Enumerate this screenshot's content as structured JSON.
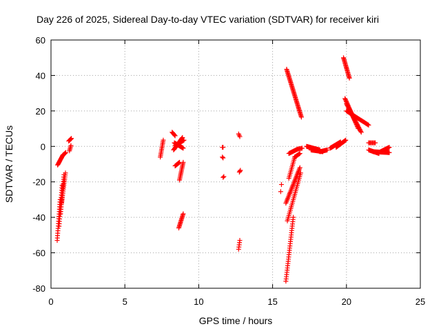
{
  "chart_data": {
    "type": "scatter",
    "title": "Day 226 of 2025, Sidereal Day-to-day VTEC variation (SDTVAR) for receiver kiri",
    "xlabel": "GPS time / hours",
    "ylabel": "SDTVAR / TECUs",
    "xlim": [
      0,
      25
    ],
    "ylim": [
      -80,
      60
    ],
    "xticks": [
      "0",
      "5",
      "10",
      "15",
      "20",
      "25"
    ],
    "yticks": [
      "-80",
      "-60",
      "-40",
      "-20",
      "0",
      "20",
      "40",
      "60"
    ],
    "grid": true,
    "marker": "plus",
    "color": "#ff0000",
    "segments": [
      {
        "x0": 0.45,
        "y0": -10.5,
        "x1": 0.8,
        "y1": -5.0,
        "n": 14
      },
      {
        "x0": 0.8,
        "y0": -5.0,
        "x1": 1.0,
        "y1": -3.5,
        "n": 6
      },
      {
        "x0": 0.42,
        "y0": -53.0,
        "x1": 0.62,
        "y1": -30.0,
        "n": 18
      },
      {
        "x0": 0.55,
        "y0": -45.0,
        "x1": 0.75,
        "y1": -22.0,
        "n": 18
      },
      {
        "x0": 0.65,
        "y0": -38.0,
        "x1": 0.88,
        "y1": -16.0,
        "n": 18
      },
      {
        "x0": 0.72,
        "y0": -32.0,
        "x1": 0.98,
        "y1": -15.0,
        "n": 16
      },
      {
        "x0": 1.2,
        "y0": 3.0,
        "x1": 1.38,
        "y1": 4.5,
        "n": 6
      },
      {
        "x0": 1.25,
        "y0": -2.5,
        "x1": 1.35,
        "y1": 0.5,
        "n": 5
      },
      {
        "x0": 7.4,
        "y0": -6.0,
        "x1": 7.6,
        "y1": 3.5,
        "n": 12
      },
      {
        "x0": 8.2,
        "y0": 8.0,
        "x1": 8.4,
        "y1": 6.0,
        "n": 6
      },
      {
        "x0": 8.3,
        "y0": -2.0,
        "x1": 8.9,
        "y1": 5.0,
        "n": 20
      },
      {
        "x0": 8.35,
        "y0": 2.0,
        "x1": 8.95,
        "y1": -1.0,
        "n": 18
      },
      {
        "x0": 8.4,
        "y0": 0.5,
        "x1": 9.0,
        "y1": 3.5,
        "n": 14
      },
      {
        "x0": 8.4,
        "y0": -11.0,
        "x1": 8.7,
        "y1": -9.0,
        "n": 8
      },
      {
        "x0": 8.7,
        "y0": -19.0,
        "x1": 8.95,
        "y1": -9.0,
        "n": 14
      },
      {
        "x0": 8.65,
        "y0": -46.0,
        "x1": 8.95,
        "y1": -38.0,
        "n": 14
      },
      {
        "x0": 11.6,
        "y0": -0.5,
        "x1": 11.65,
        "y1": -0.5,
        "n": 2
      },
      {
        "x0": 11.6,
        "y0": -6.0,
        "x1": 11.65,
        "y1": -6.5,
        "n": 2
      },
      {
        "x0": 11.65,
        "y0": -17.5,
        "x1": 11.7,
        "y1": -17.0,
        "n": 2
      },
      {
        "x0": 12.7,
        "y0": 7.0,
        "x1": 12.78,
        "y1": 5.5,
        "n": 3
      },
      {
        "x0": 12.75,
        "y0": -14.5,
        "x1": 12.82,
        "y1": -13.5,
        "n": 3
      },
      {
        "x0": 12.7,
        "y0": -58.0,
        "x1": 12.78,
        "y1": -53.0,
        "n": 5
      },
      {
        "x0": 15.6,
        "y0": -21.5,
        "x1": 15.6,
        "y1": -21.5,
        "n": 1
      },
      {
        "x0": 15.55,
        "y0": -25.5,
        "x1": 15.55,
        "y1": -25.5,
        "n": 1
      },
      {
        "x0": 15.95,
        "y0": 43.5,
        "x1": 16.95,
        "y1": 16.5,
        "n": 45
      },
      {
        "x0": 15.9,
        "y0": -76.0,
        "x1": 16.4,
        "y1": -40.0,
        "n": 30
      },
      {
        "x0": 15.9,
        "y0": -32.0,
        "x1": 16.85,
        "y1": -12.0,
        "n": 30
      },
      {
        "x0": 16.0,
        "y0": -42.0,
        "x1": 16.9,
        "y1": -15.0,
        "n": 28
      },
      {
        "x0": 16.1,
        "y0": -18.0,
        "x1": 16.5,
        "y1": -6.0,
        "n": 14
      },
      {
        "x0": 16.5,
        "y0": -6.0,
        "x1": 16.85,
        "y1": -4.0,
        "n": 8
      },
      {
        "x0": 16.1,
        "y0": -4.0,
        "x1": 16.7,
        "y1": -1.5,
        "n": 14
      },
      {
        "x0": 16.7,
        "y0": -1.5,
        "x1": 17.0,
        "y1": -1.0,
        "n": 6
      },
      {
        "x0": 17.3,
        "y0": 0.0,
        "x1": 18.2,
        "y1": -2.0,
        "n": 28
      },
      {
        "x0": 17.6,
        "y0": -2.0,
        "x1": 18.4,
        "y1": -3.0,
        "n": 20
      },
      {
        "x0": 18.2,
        "y0": -3.0,
        "x1": 18.7,
        "y1": -2.0,
        "n": 14
      },
      {
        "x0": 18.9,
        "y0": -1.0,
        "x1": 19.6,
        "y1": 2.5,
        "n": 22
      },
      {
        "x0": 19.3,
        "y0": -0.5,
        "x1": 19.95,
        "y1": 3.5,
        "n": 18
      },
      {
        "x0": 19.8,
        "y0": 50.0,
        "x1": 20.2,
        "y1": 38.5,
        "n": 20
      },
      {
        "x0": 19.9,
        "y0": 27.0,
        "x1": 20.8,
        "y1": 10.0,
        "n": 30
      },
      {
        "x0": 20.0,
        "y0": 24.0,
        "x1": 21.0,
        "y1": 8.0,
        "n": 30
      },
      {
        "x0": 20.0,
        "y0": 20.0,
        "x1": 21.5,
        "y1": 12.0,
        "n": 30
      },
      {
        "x0": 21.5,
        "y0": 2.0,
        "x1": 21.95,
        "y1": 2.0,
        "n": 8
      },
      {
        "x0": 21.5,
        "y0": -2.0,
        "x1": 22.2,
        "y1": -4.0,
        "n": 18
      },
      {
        "x0": 21.8,
        "y0": -3.0,
        "x1": 22.9,
        "y1": -3.5,
        "n": 24
      },
      {
        "x0": 22.3,
        "y0": -3.0,
        "x1": 22.9,
        "y1": -0.5,
        "n": 14
      }
    ]
  }
}
